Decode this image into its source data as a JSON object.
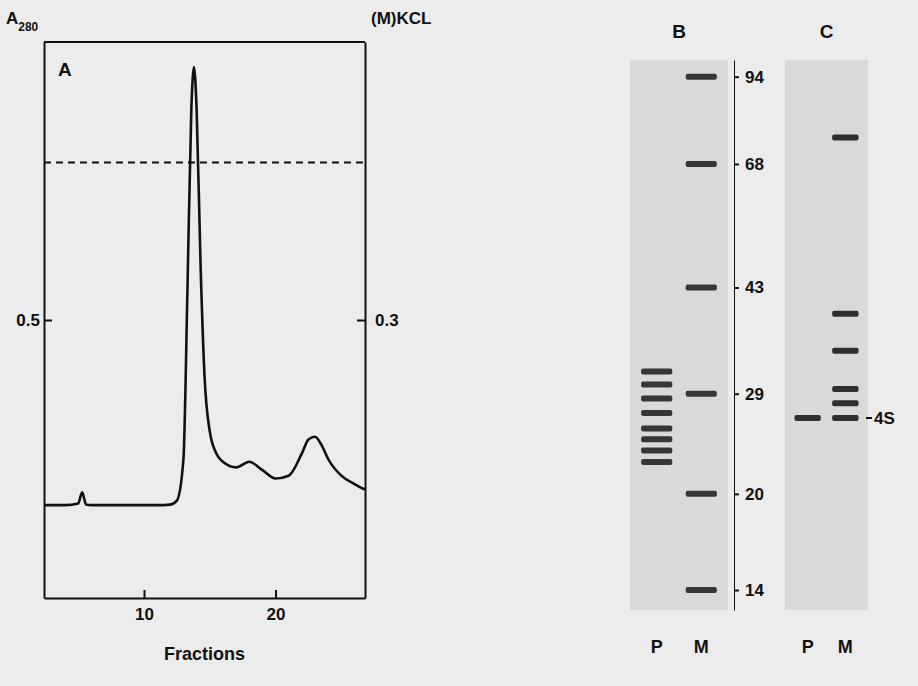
{
  "chart_data": [
    {
      "type": "line",
      "title": "A",
      "x_label": "Fractions",
      "y_label": "A280",
      "y2_label": "(M)KCL",
      "xlim": [
        2.4,
        26.8
      ],
      "xticks": [
        10,
        20
      ],
      "ylim": [
        0,
        1
      ],
      "yticks": [
        0.5
      ],
      "y2lim": [
        0,
        0.6
      ],
      "y2ticks": [
        0.3
      ],
      "series": [
        {
          "x": [
            2.4,
            3,
            4,
            5,
            5.3,
            5.6,
            6,
            7,
            8,
            9,
            10,
            11,
            12,
            12.5,
            13,
            13.3,
            13.6,
            13.8,
            14,
            14.3,
            14.6,
            15,
            15.5,
            16,
            17,
            18,
            19,
            20,
            21,
            22,
            22.5,
            23,
            23.5,
            24,
            25,
            26,
            26.8
          ],
          "values": [
            0.167,
            0.167,
            0.167,
            0.17,
            0.19,
            0.168,
            0.167,
            0.167,
            0.167,
            0.167,
            0.167,
            0.167,
            0.168,
            0.175,
            0.25,
            0.55,
            0.88,
            0.955,
            0.88,
            0.6,
            0.4,
            0.3,
            0.26,
            0.245,
            0.235,
            0.245,
            0.23,
            0.215,
            0.22,
            0.26,
            0.285,
            0.29,
            0.275,
            0.25,
            0.22,
            0.205,
            0.195
          ],
          "color": "#111111",
          "line_style": "solid"
        },
        {
          "x": [
            2.4,
            26.8
          ],
          "values": [
            0.47,
            0.47
          ],
          "color": "#111111",
          "line_style": "dashed",
          "axis": "y2"
        }
      ]
    },
    {
      "type": "gel",
      "title": "B",
      "categories": [
        "P",
        "M"
      ],
      "log": "y",
      "ylim": [
        13,
        100
      ],
      "yticks": [
        94,
        68,
        43,
        29,
        20,
        14
      ],
      "color": "#1a1a1a",
      "bands": [
        [
          31.5,
          30,
          28.5,
          27,
          25.5,
          24.5,
          23.5,
          22.5
        ],
        [
          94,
          68,
          43,
          29,
          20,
          14
        ]
      ]
    },
    {
      "type": "gel",
      "title": "C",
      "categories": [
        "P",
        "M"
      ],
      "log": "y",
      "ylim": [
        13,
        100
      ],
      "tick_labels": "x",
      "color": "#111111",
      "bands": [
        [
          26.5
        ],
        [
          75,
          39,
          34,
          29.5,
          28,
          26.5
        ]
      ],
      "annotations": [
        {
          "text": "4S",
          "y": 26.5
        }
      ]
    }
  ]
}
